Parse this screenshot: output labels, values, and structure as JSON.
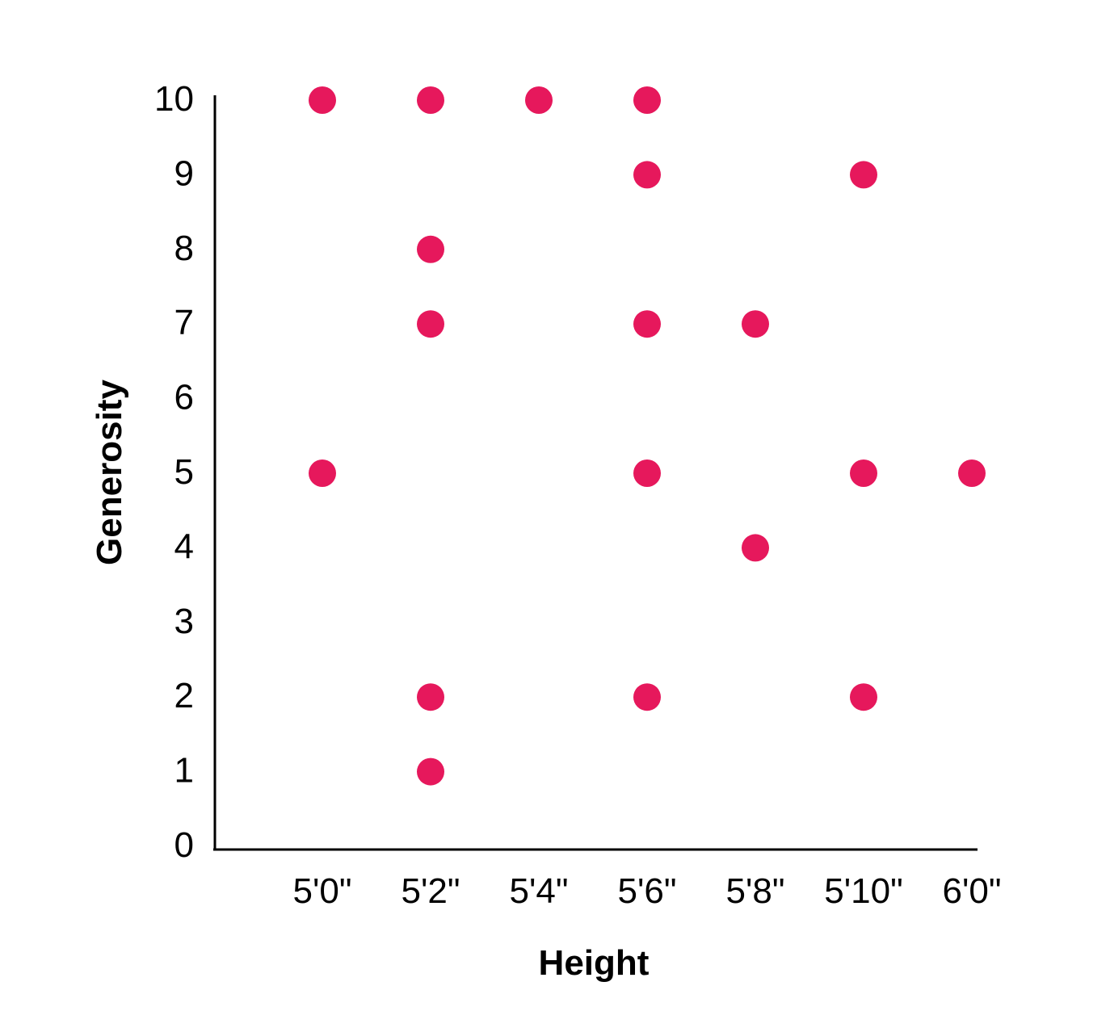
{
  "chart_data": {
    "type": "scatter",
    "title": "",
    "xlabel": "Height",
    "ylabel": "Generosity",
    "x_categories": [
      "5'0\"",
      "5'2\"",
      "5'4\"",
      "5'6\"",
      "5'8\"",
      "5'10\"",
      "6'0\""
    ],
    "y_ticks": [
      "0",
      "1",
      "2",
      "3",
      "4",
      "5",
      "6",
      "7",
      "8",
      "9",
      "10"
    ],
    "ylim": [
      0,
      10
    ],
    "grid": false,
    "legend": "none",
    "series": [
      {
        "color": "#e6185c",
        "points": [
          {
            "x": "5'0\"",
            "y": 10
          },
          {
            "x": "5'0\"",
            "y": 5
          },
          {
            "x": "5'2\"",
            "y": 10
          },
          {
            "x": "5'2\"",
            "y": 8
          },
          {
            "x": "5'2\"",
            "y": 7
          },
          {
            "x": "5'2\"",
            "y": 2
          },
          {
            "x": "5'2\"",
            "y": 1
          },
          {
            "x": "5'4\"",
            "y": 10
          },
          {
            "x": "5'6\"",
            "y": 10
          },
          {
            "x": "5'6\"",
            "y": 9
          },
          {
            "x": "5'6\"",
            "y": 7
          },
          {
            "x": "5'6\"",
            "y": 5
          },
          {
            "x": "5'6\"",
            "y": 2
          },
          {
            "x": "5'8\"",
            "y": 7
          },
          {
            "x": "5'8\"",
            "y": 4
          },
          {
            "x": "5'10\"",
            "y": 9
          },
          {
            "x": "5'10\"",
            "y": 5
          },
          {
            "x": "5'10\"",
            "y": 2
          },
          {
            "x": "6'0\"",
            "y": 5
          }
        ]
      }
    ]
  }
}
